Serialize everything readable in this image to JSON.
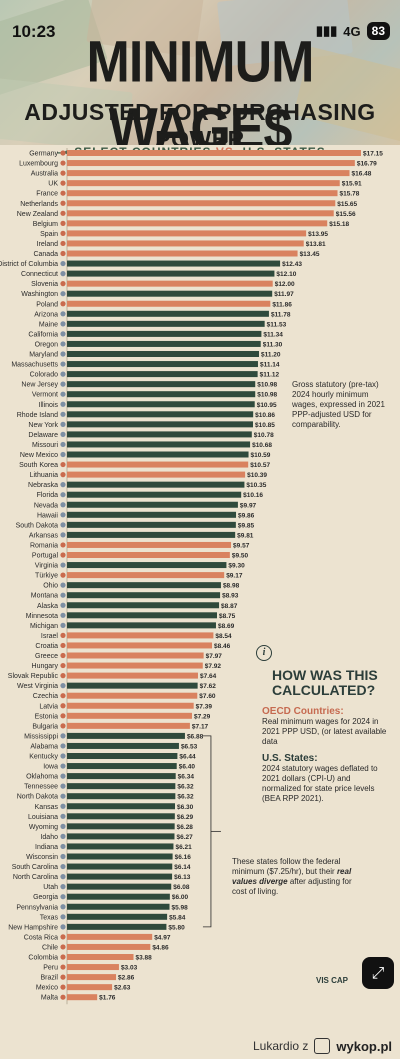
{
  "status": {
    "time": "10:23",
    "signal": "4G",
    "battery": "83"
  },
  "title": "MINIMUM WAGE$",
  "subtitle": "ADJUSTED FOR PURCHASING POWER",
  "section": {
    "left": "SELECT COUNTRIES",
    "vs": "VS.",
    "right": "U.S. STATES"
  },
  "colors": {
    "country": "#d9825f",
    "state": "#2f4a3c",
    "background": "#ece3d0"
  },
  "chart_data": {
    "type": "bar",
    "orientation": "horizontal",
    "categories": [
      "Germany",
      "Luxembourg",
      "Australia",
      "UK",
      "France",
      "Netherlands",
      "New Zealand",
      "Belgium",
      "Spain",
      "Ireland",
      "Canada",
      "District of Columbia",
      "Connecticut",
      "Slovenia",
      "Washington",
      "Poland",
      "Arizona",
      "Maine",
      "California",
      "Oregon",
      "Maryland",
      "Massachusetts",
      "Colorado",
      "New Jersey",
      "Vermont",
      "Illinois",
      "Rhode Island",
      "New York",
      "Delaware",
      "Missouri",
      "New Mexico",
      "South Korea",
      "Lithuania",
      "Nebraska",
      "Florida",
      "Nevada",
      "Hawaii",
      "South Dakota",
      "Arkansas",
      "Romania",
      "Portugal",
      "Virginia",
      "Türkiye",
      "Ohio",
      "Montana",
      "Alaska",
      "Minnesota",
      "Michigan",
      "Israel",
      "Croatia",
      "Greece",
      "Hungary",
      "Slovak Republic",
      "West Virginia",
      "Czechia",
      "Latvia",
      "Estonia",
      "Bulgaria",
      "Mississippi",
      "Alabama",
      "Kentucky",
      "Iowa",
      "Oklahoma",
      "Tennessee",
      "North Dakota",
      "Kansas",
      "Louisiana",
      "Wyoming",
      "Idaho",
      "Indiana",
      "Wisconsin",
      "South Carolina",
      "North Carolina",
      "Utah",
      "Georgia",
      "Pennsylvania",
      "Texas",
      "New Hampshire",
      "Costa Rica",
      "Chile",
      "Colombia",
      "Peru",
      "Brazil",
      "Mexico",
      "Malta"
    ],
    "values": [
      17.15,
      16.79,
      16.48,
      15.91,
      15.78,
      15.65,
      15.56,
      15.18,
      13.95,
      13.81,
      13.45,
      12.43,
      12.1,
      12.0,
      11.97,
      11.86,
      11.78,
      11.53,
      11.34,
      11.3,
      11.2,
      11.14,
      11.12,
      10.98,
      10.98,
      10.95,
      10.86,
      10.85,
      10.78,
      10.68,
      10.59,
      10.57,
      10.39,
      10.35,
      10.16,
      9.97,
      9.86,
      9.85,
      9.81,
      9.57,
      9.5,
      9.3,
      9.17,
      8.98,
      8.93,
      8.87,
      8.75,
      8.69,
      8.54,
      8.46,
      7.97,
      7.92,
      7.64,
      7.62,
      7.6,
      7.39,
      7.29,
      7.17,
      6.88,
      6.53,
      6.44,
      6.4,
      6.34,
      6.32,
      6.32,
      6.3,
      6.29,
      6.28,
      6.27,
      6.21,
      6.16,
      6.14,
      6.13,
      6.08,
      6.0,
      5.98,
      5.84,
      5.8,
      4.97,
      4.86,
      3.88,
      3.03,
      2.86,
      2.63,
      1.76
    ],
    "groups": [
      "country",
      "country",
      "country",
      "country",
      "country",
      "country",
      "country",
      "country",
      "country",
      "country",
      "country",
      "state",
      "state",
      "country",
      "state",
      "country",
      "state",
      "state",
      "state",
      "state",
      "state",
      "state",
      "state",
      "state",
      "state",
      "state",
      "state",
      "state",
      "state",
      "state",
      "state",
      "country",
      "country",
      "state",
      "state",
      "state",
      "state",
      "state",
      "state",
      "country",
      "country",
      "state",
      "country",
      "state",
      "state",
      "state",
      "state",
      "state",
      "country",
      "country",
      "country",
      "country",
      "country",
      "state",
      "country",
      "country",
      "country",
      "country",
      "state",
      "state",
      "state",
      "state",
      "state",
      "state",
      "state",
      "state",
      "state",
      "state",
      "state",
      "state",
      "state",
      "state",
      "state",
      "state",
      "state",
      "state",
      "state",
      "state",
      "country",
      "country",
      "country",
      "country",
      "country",
      "country",
      "country"
    ],
    "value_labels": [
      "$17.15",
      "$16.79",
      "$16.48",
      "$15.91",
      "$15.78",
      "$15.65",
      "$15.56",
      "$15.18",
      "$13.95",
      "$13.81",
      "$13.45",
      "$12.43",
      "$12.10",
      "$12.00",
      "$11.97",
      "$11.86",
      "$11.78",
      "$11.53",
      "$11.34",
      "$11.30",
      "$11.20",
      "$11.14",
      "$11.12",
      "$10.98",
      "$10.98",
      "$10.95",
      "$10.86",
      "$10.85",
      "$10.78",
      "$10.68",
      "$10.59",
      "$10.57",
      "$10.39",
      "$10.35",
      "$10.16",
      "$9.97",
      "$9.86",
      "$9.85",
      "$9.81",
      "$9.57",
      "$9.50",
      "$9.30",
      "$9.17",
      "$8.98",
      "$8.93",
      "$8.87",
      "$8.75",
      "$8.69",
      "$8.54",
      "$8.46",
      "$7.97",
      "$7.92",
      "$7.64",
      "$7.62",
      "$7.60",
      "$7.39",
      "$7.29",
      "$7.17",
      "$6.88",
      "$6.53",
      "$6.44",
      "$6.40",
      "$6.34",
      "$6.32",
      "$6.32",
      "$6.30",
      "$6.29",
      "$6.28",
      "$6.27",
      "$6.21",
      "$6.16",
      "$6.14",
      "$6.13",
      "$6.08",
      "$6.00",
      "$5.98",
      "$5.84",
      "$5.80",
      "$4.97",
      "$4.86",
      "$3.88",
      "$3.03",
      "$2.86",
      "$2.63",
      "$1.76"
    ],
    "xlim": [
      0,
      17.15
    ]
  },
  "annotation_gross": "Gross statutory (pre-tax) 2024 hourly minimum wages, expressed in 2021 PPP-adjusted USD for comparability.",
  "method": {
    "title": "HOW WAS THIS CALCULATED?",
    "oecd_title": "OECD Countries:",
    "oecd_text": "Real minimum wages for 2024 in 2021 PPP USD, (or latest available data",
    "us_title": "U.S. States:",
    "us_text": "2024 statutory wages deflated to 2021 dollars (CPI-U) and normalized for state price levels (BEA RPP 2021)."
  },
  "annotation_federal": {
    "text": "These states follow the federal minimum ($7.25/hr), but their ",
    "em": "real values diverge",
    "tail": " after adjusting for cost of living."
  },
  "credit": "VIS CAP",
  "watermark": {
    "user": "Lukardio z",
    "site": "wykop.pl"
  }
}
